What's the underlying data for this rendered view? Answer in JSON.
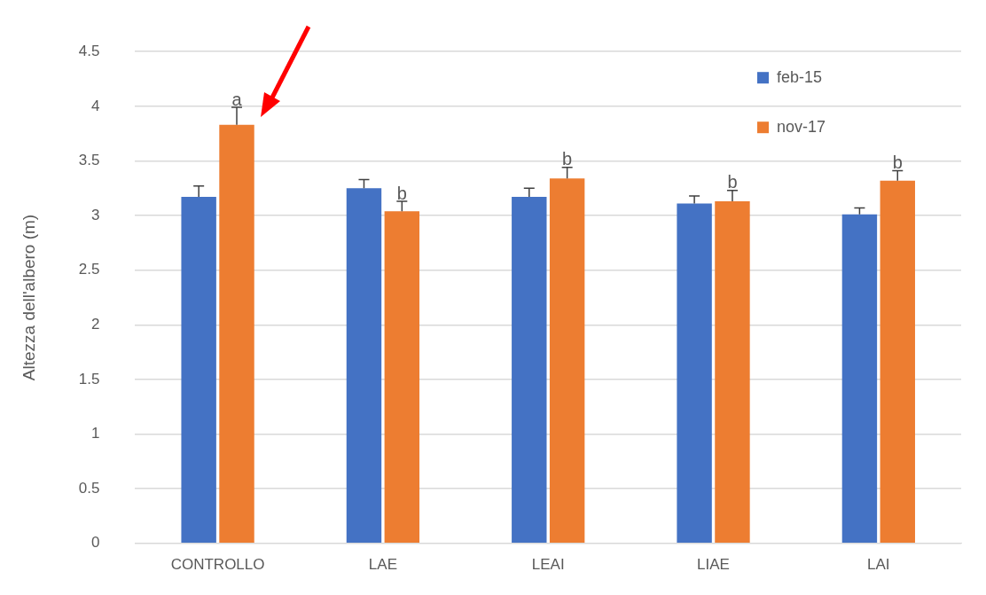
{
  "chart_data": {
    "type": "bar",
    "ylabel": "Altezza dell'albero (m)",
    "categories": [
      "CONTROLLO",
      "LAE",
      "LEAI",
      "LIAE",
      "LAI"
    ],
    "series": [
      {
        "name": "feb-15",
        "color": "#4472c4",
        "values": [
          3.17,
          3.25,
          3.17,
          3.11,
          3.01
        ],
        "errors": [
          [
            3.17,
            3.27
          ],
          [
            3.25,
            3.33
          ],
          [
            3.17,
            3.25
          ],
          [
            3.11,
            3.18
          ],
          [
            3.01,
            3.07
          ]
        ]
      },
      {
        "name": "nov-17",
        "color": "#ed7d31",
        "values": [
          3.83,
          3.04,
          3.34,
          3.13,
          3.32
        ],
        "errors": [
          [
            3.83,
            3.99
          ],
          [
            3.04,
            3.13
          ],
          [
            3.34,
            3.44
          ],
          [
            3.13,
            3.23
          ],
          [
            3.32,
            3.41
          ]
        ]
      }
    ],
    "ylim": [
      0,
      4.5
    ],
    "yticks": [
      0,
      0.5,
      1,
      1.5,
      2,
      2.5,
      3,
      3.5,
      4,
      4.5
    ],
    "grid": "y",
    "legend": "top right",
    "annotations": [
      "a",
      "b",
      "b",
      "b",
      "b"
    ]
  }
}
